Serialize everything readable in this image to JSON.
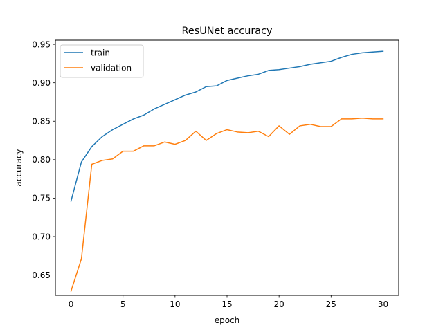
{
  "chart_data": {
    "type": "line",
    "title": "ResUNet accuracy",
    "xlabel": "epoch",
    "ylabel": "accuracy",
    "xlim": [
      -1.5,
      31.5
    ],
    "ylim": [
      0.6235,
      0.9555
    ],
    "xticks": [
      0,
      5,
      10,
      15,
      20,
      25,
      30
    ],
    "yticks": [
      0.65,
      0.7,
      0.75,
      0.8,
      0.85,
      0.9,
      0.95
    ],
    "ytick_labels": [
      "0.65",
      "0.70",
      "0.75",
      "0.80",
      "0.85",
      "0.90",
      "0.95"
    ],
    "grid": false,
    "legend_position": "top-left",
    "x": [
      0,
      1,
      2,
      3,
      4,
      5,
      6,
      7,
      8,
      9,
      10,
      11,
      12,
      13,
      14,
      15,
      16,
      17,
      18,
      19,
      20,
      21,
      22,
      23,
      24,
      25,
      26,
      27,
      28,
      29,
      30
    ],
    "series": [
      {
        "name": "train",
        "color": "#1f77b4",
        "values": [
          0.746,
          0.797,
          0.817,
          0.83,
          0.839,
          0.846,
          0.853,
          0.858,
          0.866,
          0.872,
          0.878,
          0.884,
          0.888,
          0.895,
          0.896,
          0.903,
          0.906,
          0.909,
          0.911,
          0.916,
          0.917,
          0.919,
          0.921,
          0.924,
          0.926,
          0.928,
          0.933,
          0.937,
          0.939,
          0.94,
          0.941
        ]
      },
      {
        "name": "validation",
        "color": "#ff7f0e",
        "values": [
          0.629,
          0.671,
          0.794,
          0.799,
          0.801,
          0.811,
          0.811,
          0.818,
          0.818,
          0.823,
          0.82,
          0.825,
          0.837,
          0.825,
          0.834,
          0.839,
          0.836,
          0.835,
          0.837,
          0.83,
          0.844,
          0.833,
          0.844,
          0.846,
          0.843,
          0.843,
          0.853,
          0.853,
          0.854,
          0.853,
          0.853
        ]
      }
    ]
  }
}
